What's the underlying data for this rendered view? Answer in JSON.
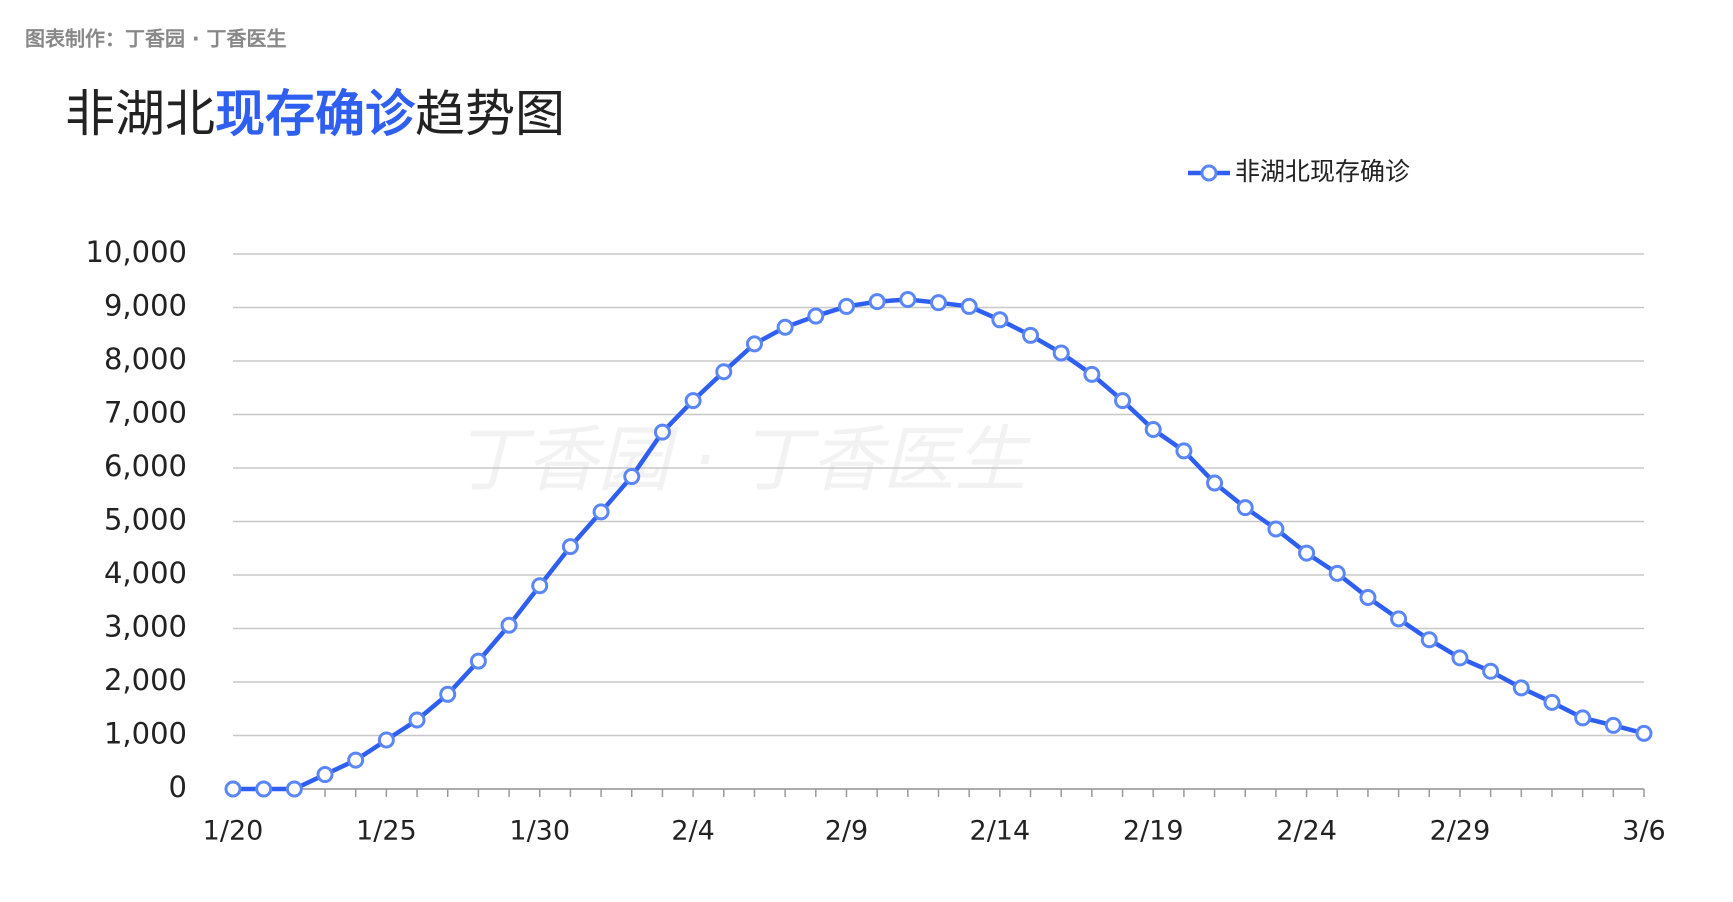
{
  "source": "图表制作：丁香园 · 丁香医生",
  "watermark": "丁香园 · 丁香医生",
  "chart_data": {
    "type": "line",
    "title": [
      "非湖北",
      "现存确诊",
      "趋势图"
    ],
    "title_highlight_color": "#2f5ff0",
    "categories": [
      "1/20",
      null,
      null,
      null,
      null,
      "1/25",
      null,
      null,
      null,
      null,
      "1/30",
      null,
      null,
      null,
      null,
      "2/4",
      null,
      null,
      null,
      null,
      "2/9",
      null,
      null,
      null,
      null,
      "2/14",
      null,
      null,
      null,
      null,
      "2/19",
      null,
      null,
      null,
      null,
      "2/24",
      null,
      null,
      null,
      null,
      "2/29",
      null,
      null,
      null,
      null,
      null,
      "3/6"
    ],
    "series": [
      {
        "name": "非湖北现存确诊",
        "color": "#2f5ff0",
        "values": [
          0,
          0,
          0,
          270,
          540,
          915,
          1290,
          1770,
          2390,
          3060,
          3800,
          4530,
          5180,
          5840,
          6670,
          7260,
          7800,
          8320,
          8630,
          8840,
          9020,
          9110,
          9150,
          9090,
          9020,
          8770,
          8480,
          8150,
          7750,
          7260,
          6720,
          6320,
          5720,
          5260,
          4860,
          4410,
          4030,
          3580,
          3180,
          2790,
          2450,
          2200,
          1890,
          1620,
          1330,
          1190,
          1040
        ]
      }
    ],
    "ylim": [
      0,
      10000
    ],
    "yticks": [
      0,
      {
        "value": 1000,
        "label": "1,000"
      },
      {
        "value": 2000,
        "label": "2,000"
      },
      {
        "value": 3000,
        "label": "3,000"
      },
      {
        "value": 4000,
        "label": "4,000"
      },
      {
        "value": 5000,
        "label": "5,000"
      },
      {
        "value": 6000,
        "label": "6,000"
      },
      {
        "value": 7000,
        "label": "7,000"
      },
      {
        "value": 8000,
        "label": "8,000"
      },
      {
        "value": 9000,
        "label": "9,000"
      },
      {
        "value": 10000,
        "label": "10,000"
      }
    ],
    "grid": true,
    "legend": "top-right"
  }
}
